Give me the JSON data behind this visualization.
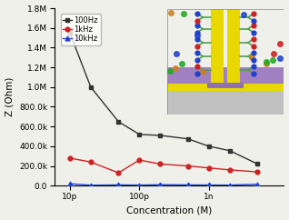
{
  "title": "",
  "xlabel": "Concentration (M)",
  "ylabel": "Z (Ohm)",
  "x_values": [
    1e-11,
    2e-11,
    5e-11,
    1e-10,
    2e-10,
    5e-10,
    1e-09,
    2e-09,
    5e-09
  ],
  "y_100hz": [
    1550000,
    1000000,
    650000,
    520000,
    510000,
    475000,
    400000,
    355000,
    220000
  ],
  "y_1khz": [
    280000,
    240000,
    130000,
    260000,
    220000,
    200000,
    180000,
    160000,
    140000
  ],
  "y_10khz": [
    20000,
    5000,
    8000,
    6000,
    10000,
    8000,
    7000,
    6000,
    15000
  ],
  "color_100hz": "#333333",
  "color_1khz": "#cc2222",
  "color_10khz": "#2244cc",
  "ylim": [
    0,
    1800000
  ],
  "yticks": [
    0,
    200000,
    400000,
    600000,
    800000,
    1000000,
    1200000,
    1400000,
    1600000,
    1800000
  ],
  "ytick_labels": [
    "0.0",
    "200.0k",
    "400.0k",
    "600.0k",
    "800.0k",
    "1.0M",
    "1.2M",
    "1.4M",
    "1.6M",
    "1.8M"
  ],
  "xtick_positions": [
    1e-11,
    1e-10,
    1e-09
  ],
  "xtick_labels": [
    "10p",
    "100p",
    "1n"
  ],
  "legend_labels": [
    "100Hz",
    "1kHz",
    "10kHz"
  ],
  "bg_color": "#f0f0ea",
  "inset_bg": "#f0f0ea",
  "layer_gray": "#c0c0c0",
  "layer_yellow": "#e8d800",
  "layer_purple": "#a080c0",
  "wire_yellow": "#e8d800"
}
